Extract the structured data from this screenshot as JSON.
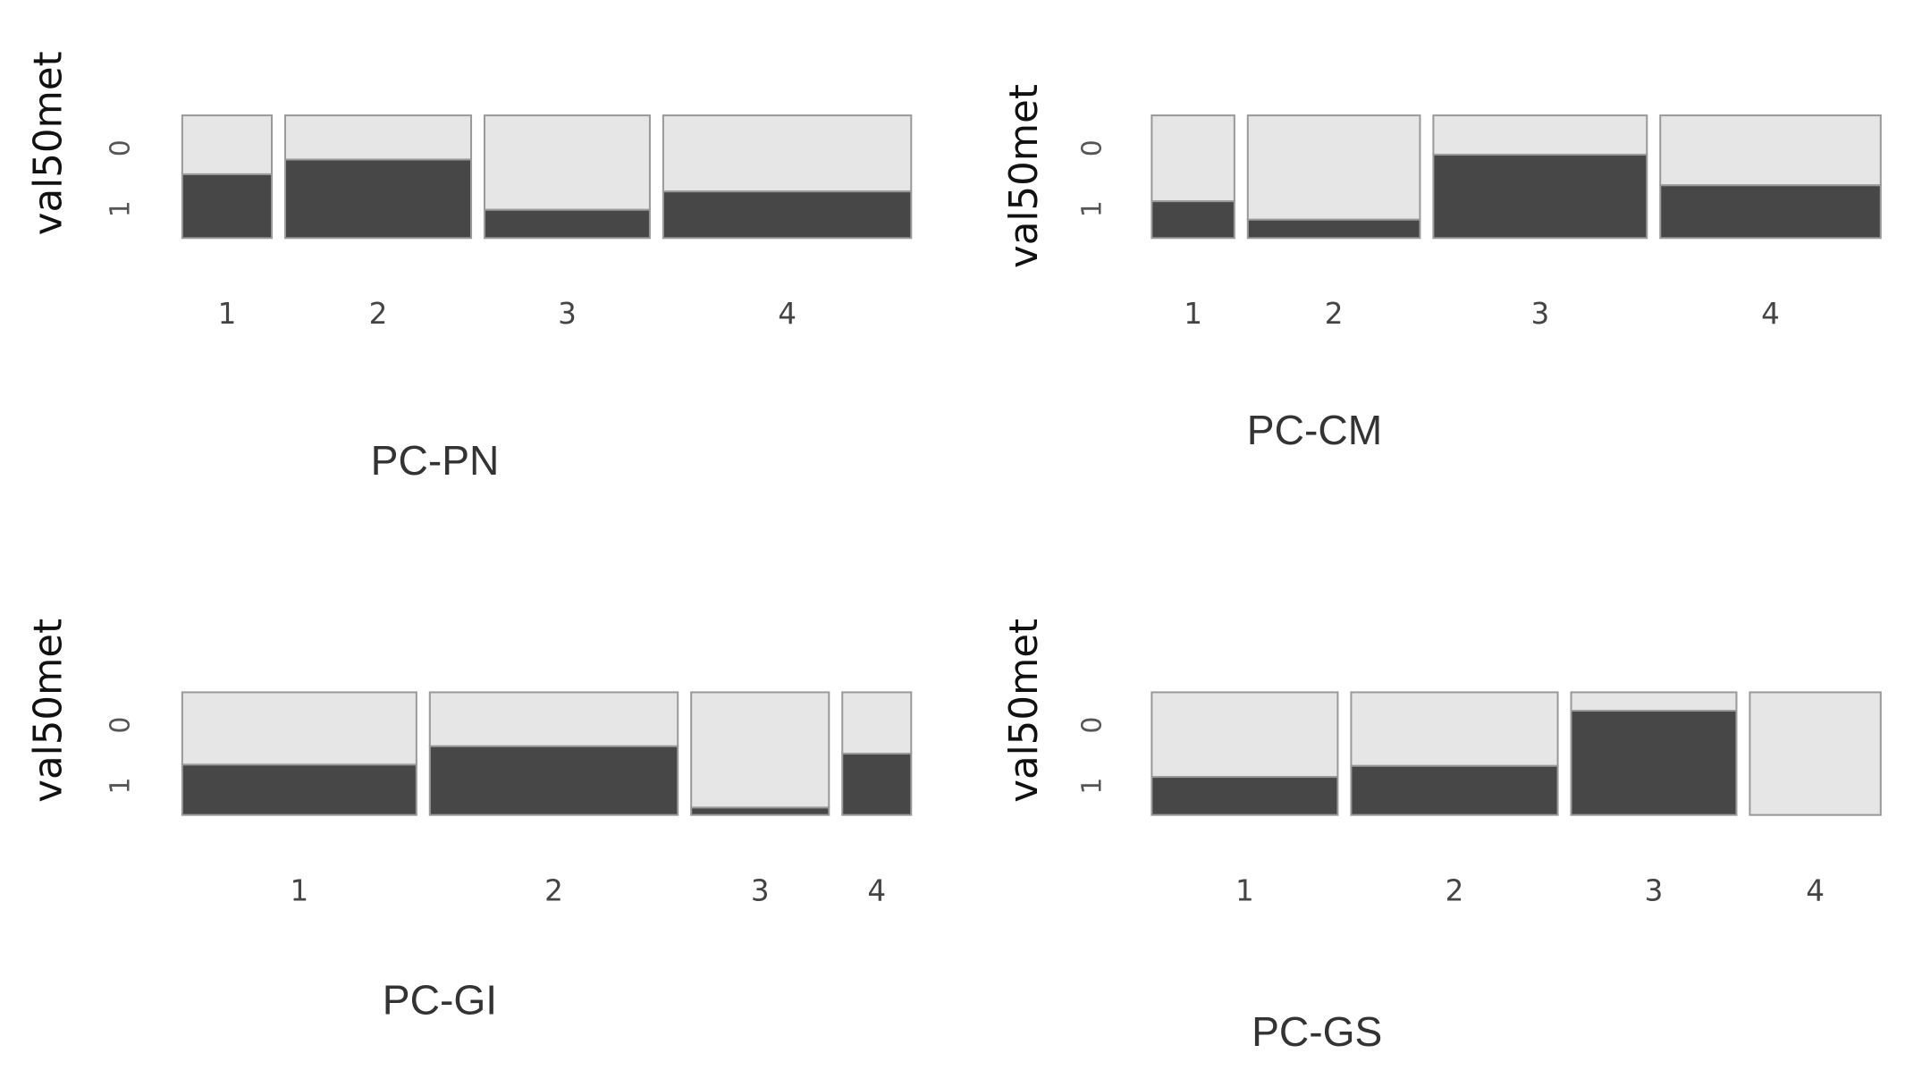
{
  "chart_data": [
    {
      "type": "mosaic",
      "title": "PC-PN",
      "ylabel": "val50met",
      "categories": [
        "1",
        "2",
        "3",
        "4"
      ],
      "widths": [
        0.13,
        0.27,
        0.24,
        0.36
      ],
      "series": [
        {
          "name": "1",
          "color": "#474747",
          "values": [
            0.52,
            0.64,
            0.23,
            0.38
          ]
        },
        {
          "name": "0",
          "color": "#e6e6e6",
          "values": [
            0.48,
            0.36,
            0.77,
            0.62
          ]
        }
      ]
    },
    {
      "type": "mosaic",
      "title": "PC-CM",
      "ylabel": "val50met",
      "categories": [
        "1",
        "2",
        "3",
        "4"
      ],
      "widths": [
        0.12,
        0.25,
        0.31,
        0.32
      ],
      "series": [
        {
          "name": "1",
          "color": "#474747",
          "values": [
            0.3,
            0.15,
            0.68,
            0.43
          ]
        },
        {
          "name": "0",
          "color": "#e6e6e6",
          "values": [
            0.7,
            0.85,
            0.32,
            0.57
          ]
        }
      ]
    },
    {
      "type": "mosaic",
      "title": "PC-GI",
      "ylabel": "val50met",
      "categories": [
        "1",
        "2",
        "3",
        "4"
      ],
      "widths": [
        0.34,
        0.36,
        0.2,
        0.1
      ],
      "series": [
        {
          "name": "1",
          "color": "#474747",
          "values": [
            0.41,
            0.56,
            0.06,
            0.5
          ]
        },
        {
          "name": "0",
          "color": "#e6e6e6",
          "values": [
            0.59,
            0.44,
            0.94,
            0.5
          ]
        }
      ]
    },
    {
      "type": "mosaic",
      "title": "PC-GS",
      "ylabel": "val50met",
      "categories": [
        "1",
        "2",
        "3",
        "4"
      ],
      "widths": [
        0.27,
        0.3,
        0.24,
        0.19
      ],
      "series": [
        {
          "name": "1",
          "color": "#474747",
          "values": [
            0.31,
            0.4,
            0.85,
            0
          ]
        },
        {
          "name": "0",
          "color": "#e6e6e6",
          "values": [
            0.69,
            0.6,
            0.15,
            1
          ]
        }
      ]
    }
  ]
}
